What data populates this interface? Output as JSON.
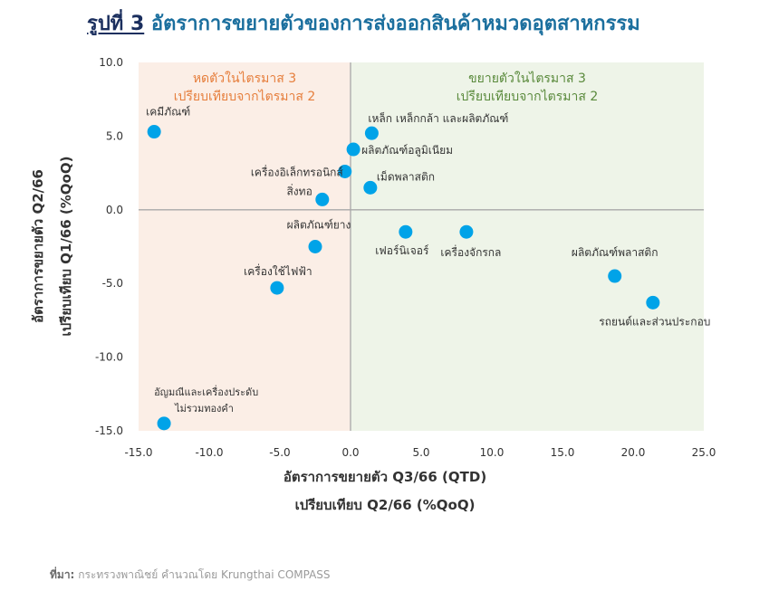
{
  "title": {
    "fig_label": "รูปที่ 3",
    "text": "อัตราการขยายตัวของการส่งออกสินค้าหมวดอุตสาหกรรม"
  },
  "source": {
    "label": "ที่มา:",
    "text": "กระทรวงพาณิชย์ คำนวณโดย Krungthai COMPASS"
  },
  "colors": {
    "point": "#00a3e8",
    "left_quadrant": "#fbeee6",
    "right_quadrant": "#eef4e8",
    "left_label": "#e67e3c",
    "right_label": "#5a8a3c",
    "axis_text": "#333333"
  },
  "chart_data": {
    "type": "scatter",
    "xlabel": [
      "อัตราการขยายตัว Q3/66 (QTD)",
      "เปรียบเทียบ Q2/66 (%QoQ)"
    ],
    "ylabel": [
      "อัตราการขยายตัว Q2/66",
      "เปรียบเทียบ Q1/66 (%QoQ)"
    ],
    "xlim": [
      -15,
      25
    ],
    "ylim": [
      -15,
      10
    ],
    "xticks": [
      "-15.0",
      "-10.0",
      "-5.0",
      "0.0",
      "5.0",
      "10.0",
      "15.0",
      "20.0",
      "25.0"
    ],
    "yticks": [
      "10.0",
      "5.0",
      "0.0",
      "-5.0",
      "-10.0",
      "-15.0"
    ],
    "quadrant_labels": {
      "left": [
        "หดตัวในไตรมาส 3",
        "เปรียบเทียบจากไตรมาส 2"
      ],
      "right": [
        "ขยายตัวในไตรมาส 3",
        "เปรียบเทียบจากไตรมาส 2"
      ]
    },
    "points": [
      {
        "name": "เคมีภัณฑ์",
        "x": -13.9,
        "y": 5.3
      },
      {
        "name": "เหล็ก เหล็กกล้า และผลิตภัณฑ์",
        "x": 1.5,
        "y": 5.2
      },
      {
        "name": "ผลิตภัณฑ์อลูมิเนียม",
        "x": 0.2,
        "y": 4.1
      },
      {
        "name": "เครื่องอิเล็กทรอนิกส์",
        "x": -0.4,
        "y": 2.6
      },
      {
        "name": "เม็ดพลาสติก",
        "x": 1.4,
        "y": 1.5
      },
      {
        "name": "สิ่งทอ",
        "x": -2.0,
        "y": 0.7
      },
      {
        "name": "ผลิตภัณฑ์ยาง",
        "x": -2.5,
        "y": -2.5
      },
      {
        "name": "เฟอร์นิเจอร์",
        "x": 3.9,
        "y": -1.5
      },
      {
        "name": "เครื่องจักรกล",
        "x": 8.2,
        "y": -1.5
      },
      {
        "name": "ผลิตภัณฑ์พลาสติก",
        "x": 18.7,
        "y": -4.5
      },
      {
        "name": "รถยนต์และส่วนประกอบ",
        "x": 21.4,
        "y": -6.3
      },
      {
        "name": "เครื่องใช้ไฟฟ้า",
        "x": -5.2,
        "y": -5.3
      },
      {
        "name": "อัญมณีและเครื่องประดับ ไม่รวมทองคำ",
        "x": -13.2,
        "y": -14.5
      }
    ]
  }
}
